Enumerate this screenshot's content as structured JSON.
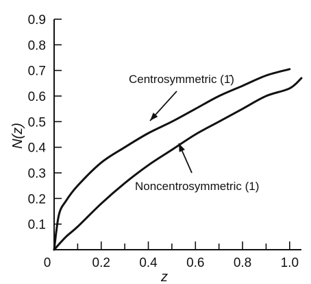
{
  "chart_data": {
    "type": "line",
    "title": "",
    "xlabel": "z",
    "ylabel": "N(z)",
    "xlim": [
      0,
      1.05
    ],
    "ylim": [
      0,
      0.9
    ],
    "grid": false,
    "x_ticks": [
      0,
      0.2,
      0.4,
      0.6,
      0.8,
      1.0
    ],
    "x_tick_labels": [
      "0",
      "0.2",
      "0.4",
      "0.6",
      "0.8",
      "1.0"
    ],
    "y_ticks": [
      0.1,
      0.2,
      0.3,
      0.4,
      0.5,
      0.6,
      0.7,
      0.8,
      0.9
    ],
    "y_tick_labels": [
      "0.1",
      "0.2",
      "0.3",
      "0.4",
      "0.5",
      "0.6",
      "0.7",
      "0.8",
      "0.9"
    ],
    "series": [
      {
        "x": [
          0,
          0.02,
          0.05,
          0.1,
          0.2,
          0.3,
          0.4,
          0.5,
          0.6,
          0.7,
          0.8,
          0.9,
          1.0
        ],
        "values": [
          0,
          0.135,
          0.19,
          0.25,
          0.34,
          0.4,
          0.455,
          0.5,
          0.55,
          0.6,
          0.64,
          0.68,
          0.705
        ]
      },
      {
        "x": [
          0,
          0.05,
          0.1,
          0.2,
          0.3,
          0.4,
          0.5,
          0.6,
          0.7,
          0.8,
          0.9,
          1.0,
          1.05
        ],
        "values": [
          0,
          0.05,
          0.09,
          0.18,
          0.26,
          0.33,
          0.39,
          0.45,
          0.5,
          0.55,
          0.6,
          0.63,
          0.67
        ]
      }
    ],
    "annotations": [
      {
        "text": "Centrosymmetric (1̄)",
        "target_x": 0.47,
        "target_y": 0.5,
        "series": 0
      },
      {
        "text": "Noncentrosymmetric (1)",
        "target_x": 0.5,
        "target_y": 0.38,
        "series": 1
      }
    ]
  }
}
